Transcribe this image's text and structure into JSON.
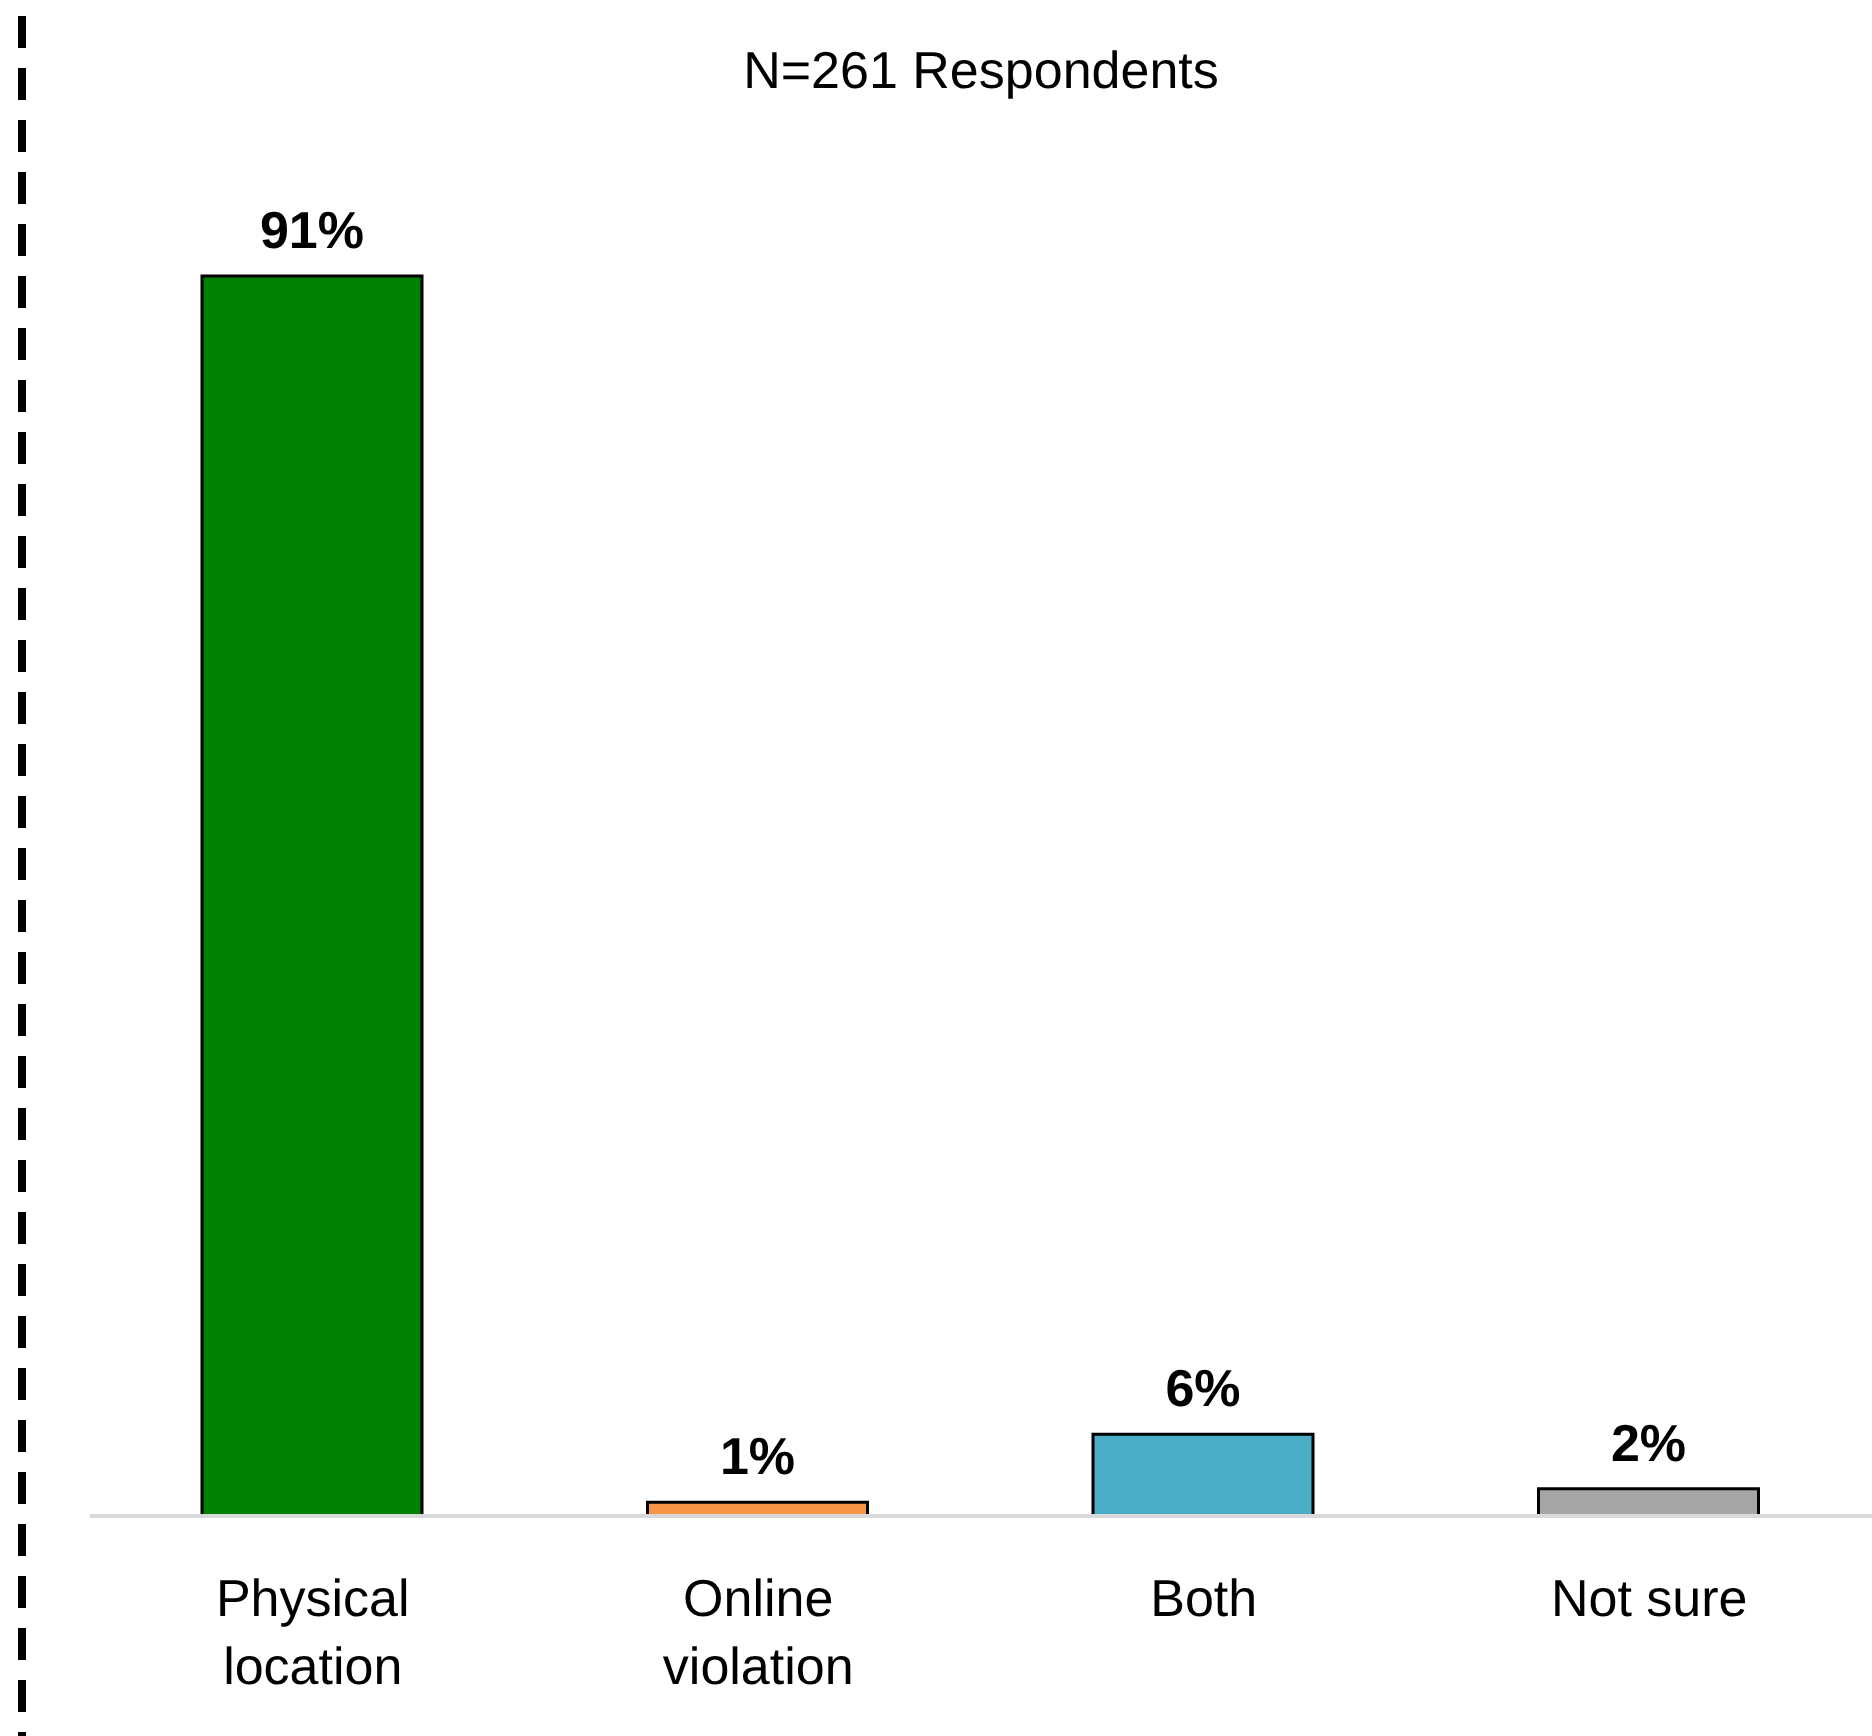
{
  "chart_data": {
    "type": "bar",
    "title": "N=261 Respondents",
    "categories": [
      "Physical location",
      "Online violation",
      "Both",
      "Not sure"
    ],
    "values": [
      91,
      1,
      6,
      2
    ],
    "colors": [
      "#008000",
      "#f79646",
      "#4bacc6",
      "#a5a5a5"
    ],
    "value_labels": [
      "91%",
      "1%",
      "6%",
      "2%"
    ]
  }
}
